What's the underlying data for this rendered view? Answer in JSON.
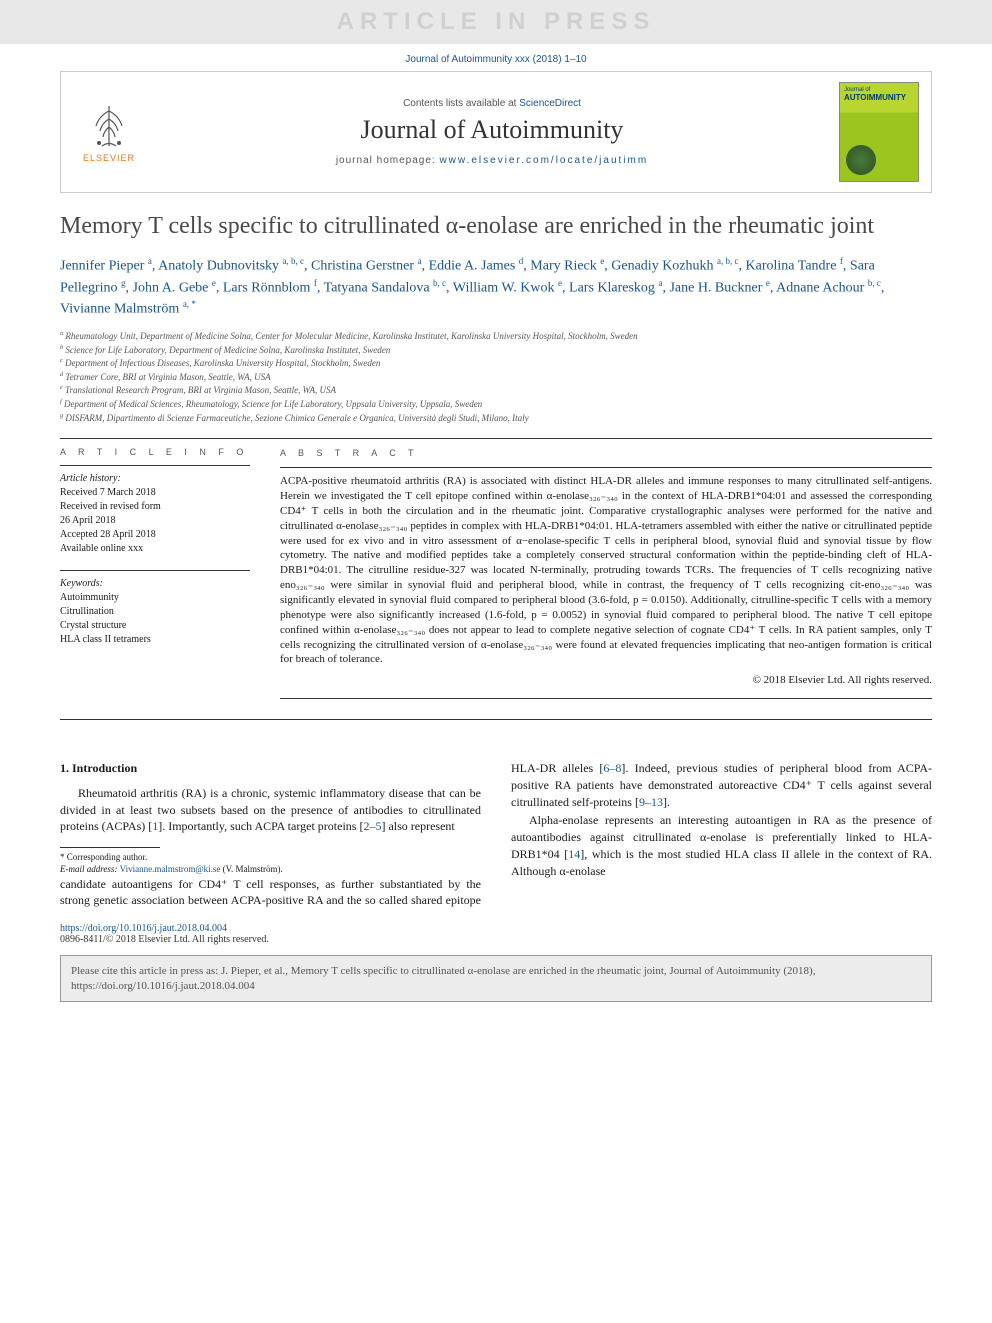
{
  "watermark": "ARTICLE IN PRESS",
  "citation_top": "Journal of Autoimmunity xxx (2018) 1–10",
  "header": {
    "contents_prefix": "Contents lists available at ",
    "contents_link": "ScienceDirect",
    "journal_name": "Journal of Autoimmunity",
    "homepage_prefix": "journal homepage: ",
    "homepage_url": "www.elsevier.com/locate/jautimm",
    "elsevier_label": "ELSEVIER",
    "cover_label_top": "Journal of",
    "cover_label_main": "AUTOIMMUNITY"
  },
  "title": "Memory T cells specific to citrullinated α-enolase are enriched in the rheumatic joint",
  "authors_html": "Jennifer Pieper <span class='aff'>a</span>, Anatoly Dubnovitsky <span class='aff'>a, b, c</span>, Christina Gerstner <span class='aff'>a</span>, Eddie A. James <span class='aff'>d</span>, Mary Rieck <span class='aff'>e</span>, Genadiy Kozhukh <span class='aff'>a, b, c</span>, Karolina Tandre <span class='aff'>f</span>, Sara Pellegrino <span class='aff'>g</span>, John A. Gebe <span class='aff'>e</span>, Lars Rönnblom <span class='aff'>f</span>, Tatyana Sandalova <span class='aff'>b, c</span>, William W. Kwok <span class='aff'>e</span>, Lars Klareskog <span class='aff'>a</span>, Jane H. Buckner <span class='aff'>e</span>, Adnane Achour <span class='aff'>b, c</span>, Vivianne Malmström <span class='aff'>a, <span class='star'>*</span></span>",
  "affiliations": [
    "a Rheumatology Unit, Department of Medicine Solna, Center for Molecular Medicine, Karolinska Institutet, Karolinska University Hospital, Stockholm, Sweden",
    "b Science for Life Laboratory, Department of Medicine Solna, Karolinska Institutet, Sweden",
    "c Department of Infectious Diseases, Karolinska University Hospital, Stockholm, Sweden",
    "d Tetramer Core, BRI at Virginia Mason, Seattle, WA, USA",
    "e Translational Research Program, BRI at Virginia Mason, Seattle, WA, USA",
    "f Department of Medical Sciences, Rheumatology, Science for Life Laboratory, Uppsala University, Uppsala, Sweden",
    "g DISFARM, Dipartimento di Scienze Farmaceutiche, Sezione Chimica Generale e Organica, Università degli Studi, Milano, Italy"
  ],
  "info": {
    "label": "A R T I C L E   I N F O",
    "history_hdr": "Article history:",
    "history": [
      "Received 7 March 2018",
      "Received in revised form",
      "26 April 2018",
      "Accepted 28 April 2018",
      "Available online xxx"
    ],
    "keywords_hdr": "Keywords:",
    "keywords": [
      "Autoimmunity",
      "Citrullination",
      "Crystal structure",
      "HLA class II tetramers"
    ]
  },
  "abstract": {
    "label": "A B S T R A C T",
    "text": "ACPA-positive rheumatoid arthritis (RA) is associated with distinct HLA-DR alleles and immune responses to many citrullinated self-antigens. Herein we investigated the T cell epitope confined within α-enolase₃₂₆₋₃₄₀ in the context of HLA-DRB1*04:01 and assessed the corresponding CD4⁺ T cells in both the circulation and in the rheumatic joint. Comparative crystallographic analyses were performed for the native and citrullinated α-enolase₃₂₆₋₃₄₀ peptides in complex with HLA-DRB1*04:01. HLA-tetramers assembled with either the native or citrullinated peptide were used for ex vivo and in vitro assessment of α−enolase-specific T cells in peripheral blood, synovial fluid and synovial tissue by flow cytometry. The native and modified peptides take a completely conserved structural conformation within the peptide-binding cleft of HLA-DRB1*04:01. The citrulline residue-327 was located N-terminally, protruding towards TCRs. The frequencies of T cells recognizing native eno₃₂₆₋₃₄₀ were similar in synovial fluid and peripheral blood, while in contrast, the frequency of T cells recognizing cit-eno₃₂₆₋₃₄₀ was significantly elevated in synovial fluid compared to peripheral blood (3.6-fold, p = 0.0150). Additionally, citrulline-specific T cells with a memory phenotype were also significantly increased (1.6-fold, p = 0.0052) in synovial fluid compared to peripheral blood. The native T cell epitope confined within α-enolase₃₂₆₋₃₄₀ does not appear to lead to complete negative selection of cognate CD4⁺ T cells. In RA patient samples, only T cells recognizing the citrullinated version of α-enolase₃₂₆₋₃₄₀ were found at elevated frequencies implicating that neo-antigen formation is critical for breach of tolerance.",
    "copyright": "© 2018 Elsevier Ltd. All rights reserved."
  },
  "body": {
    "section_heading": "1. Introduction",
    "p1": "Rheumatoid arthritis (RA) is a chronic, systemic inflammatory disease that can be divided in at least two subsets based on the presence of antibodies to citrullinated proteins (ACPAs) [1]. Importantly, such ACPA target proteins [2–5] also represent",
    "p2": "candidate autoantigens for CD4⁺ T cell responses, as further substantiated by the strong genetic association between ACPA-positive RA and the so called shared epitope HLA-DR alleles [6–8]. Indeed, previous studies of peripheral blood from ACPA-positive RA patients have demonstrated autoreactive CD4⁺ T cells against several citrullinated self-proteins [9–13].",
    "p3": "Alpha-enolase represents an interesting autoantigen in RA as the presence of autoantibodies against citrullinated α-enolase is preferentially linked to HLA-DRB1*04 [14], which is the most studied HLA class II allele in the context of RA. Although α-enolase"
  },
  "footnotes": {
    "corr": "* Corresponding author.",
    "email_label": "E-mail address: ",
    "email": "Vivianne.malmstrom@ki.se",
    "email_suffix": " (V. Malmström)."
  },
  "doi": {
    "url": "https://doi.org/10.1016/j.jaut.2018.04.004",
    "issn_line": "0896-8411/© 2018 Elsevier Ltd. All rights reserved."
  },
  "cite_box": "Please cite this article in press as: J. Pieper, et al., Memory T cells specific to citrullinated α-enolase are enriched in the rheumatic joint, Journal of Autoimmunity (2018), https://doi.org/10.1016/j.jaut.2018.04.004",
  "colors": {
    "link": "#1a5490",
    "elsevier_orange": "#e67817",
    "cover_green": "#b8d62f",
    "watermark_bg": "#e8e8e8",
    "watermark_fg": "#d0d0d0"
  }
}
